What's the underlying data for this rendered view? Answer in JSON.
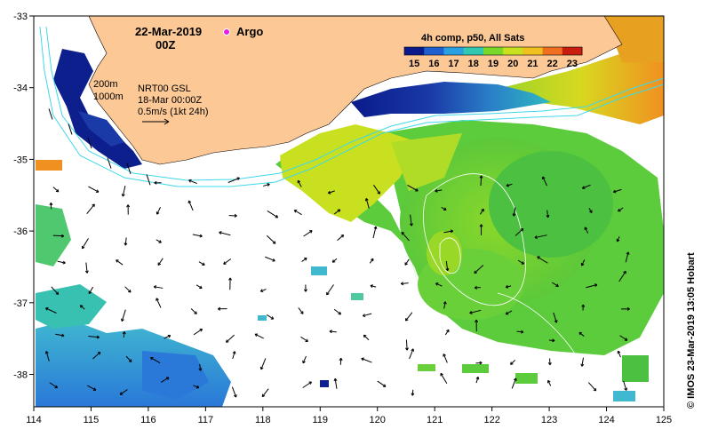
{
  "map": {
    "date": "22-Mar-2019",
    "time": "00Z",
    "argo_label": "Argo",
    "colorbar_title": "4h comp, p50, All Sats",
    "colorbar_ticks": [
      "15",
      "16",
      "17",
      "18",
      "19",
      "20",
      "21",
      "22",
      "23"
    ],
    "colorbar_colors": [
      "#0a1a8a",
      "#1f5fd0",
      "#2aa0e0",
      "#30c8b0",
      "#7ad82a",
      "#c8e020",
      "#f0c020",
      "#f07020",
      "#c81e10"
    ],
    "legend_200m": "200m",
    "legend_1000m": "1000m",
    "altimetry_label": "NRT00 GSL",
    "altimetry_date": "18-Mar 00:00Z",
    "velocity_scale": "0.5m/s (1kt 24h)",
    "credit": "© IMOS 23-Mar-2019 13:05 Hobart",
    "lon_ticks": [
      "114",
      "115",
      "116",
      "117",
      "118",
      "119",
      "120",
      "121",
      "122",
      "123",
      "124",
      "125"
    ],
    "lat_ticks": [
      "-33",
      "-34",
      "-35",
      "-36",
      "-37",
      "-38"
    ],
    "land_color": "#fbc896",
    "argo_color": "#e020e0"
  }
}
